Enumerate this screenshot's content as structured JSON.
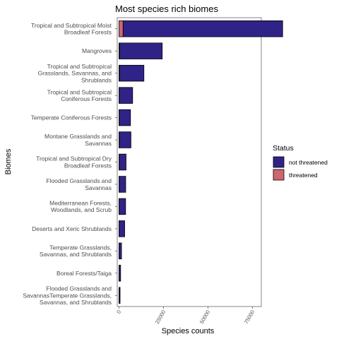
{
  "chart_data": {
    "type": "bar",
    "orientation": "horizontal",
    "stacked": true,
    "title": "Most species rich biomes",
    "xlabel": "Species counts",
    "ylabel": "Biomes",
    "xlim": [
      -1000,
      80000
    ],
    "x_ticks": [
      0,
      25000,
      50000,
      75000
    ],
    "x_tick_labels": [
      "0",
      "25000",
      "50000",
      "75000"
    ],
    "grid": false,
    "panel_border": true,
    "categories": [
      "Tropical and Subtropical Moist Broadleaf Forests",
      "Mangroves",
      "Tropical and Subtropical Grasslands, Savannas, and Shrublands",
      "Tropical and Subtropical Coniferous Forests",
      "Temperate Coniferous Forests",
      "Montane Grasslands and Savannas",
      "Tropical and Subtropical Dry Broadleaf Forests",
      "Flooded Grasslands and Savannas",
      "Mediterranean Forests, Woodlands, and Scrub",
      "Deserts and Xeric Shrublands",
      "Temperate Grasslands, Savannas, and Shrublands",
      "Boreal Forests/Taiga",
      "Flooded Grasslands and SavannasTemperate Grasslands, Savannas, and Shrublands"
    ],
    "category_label_lines": [
      [
        "Tropical and Subtropical Moist",
        "Broadleaf Forests"
      ],
      [
        "Mangroves"
      ],
      [
        "Tropical and Subtropical",
        "Grasslands, Savannas, and",
        "Shrublands"
      ],
      [
        "Tropical and Subtropical",
        "Coniferous Forests"
      ],
      [
        "Temperate Coniferous Forests"
      ],
      [
        "Montane Grasslands and",
        "Savannas"
      ],
      [
        "Tropical and Subtropical Dry",
        "Broadleaf Forests"
      ],
      [
        "Flooded Grasslands and",
        "Savannas"
      ],
      [
        "Mediterranean Forests,",
        "Woodlands, and Scrub"
      ],
      [
        "Deserts and Xeric Shrublands"
      ],
      [
        "Temperate Grasslands,",
        "Savannas, and Shrublands"
      ],
      [
        "Boreal Forests/Taiga"
      ],
      [
        "Flooded Grasslands and",
        "SavannasTemperate Grasslands,",
        "Savannas, and Shrublands"
      ]
    ],
    "series": [
      {
        "name": "threatened",
        "color": "#cd6670",
        "values": [
          2300,
          300,
          300,
          150,
          150,
          200,
          150,
          150,
          100,
          80,
          40,
          20,
          10
        ]
      },
      {
        "name": "not threatened",
        "color": "#302387",
        "values": [
          89700,
          24000,
          13700,
          7500,
          6300,
          6500,
          3800,
          3600,
          3600,
          3100,
          1360,
          880,
          590
        ]
      }
    ],
    "legend": {
      "title": "Status",
      "position": "right",
      "entries": [
        "not threatened",
        "threatened"
      ]
    }
  }
}
